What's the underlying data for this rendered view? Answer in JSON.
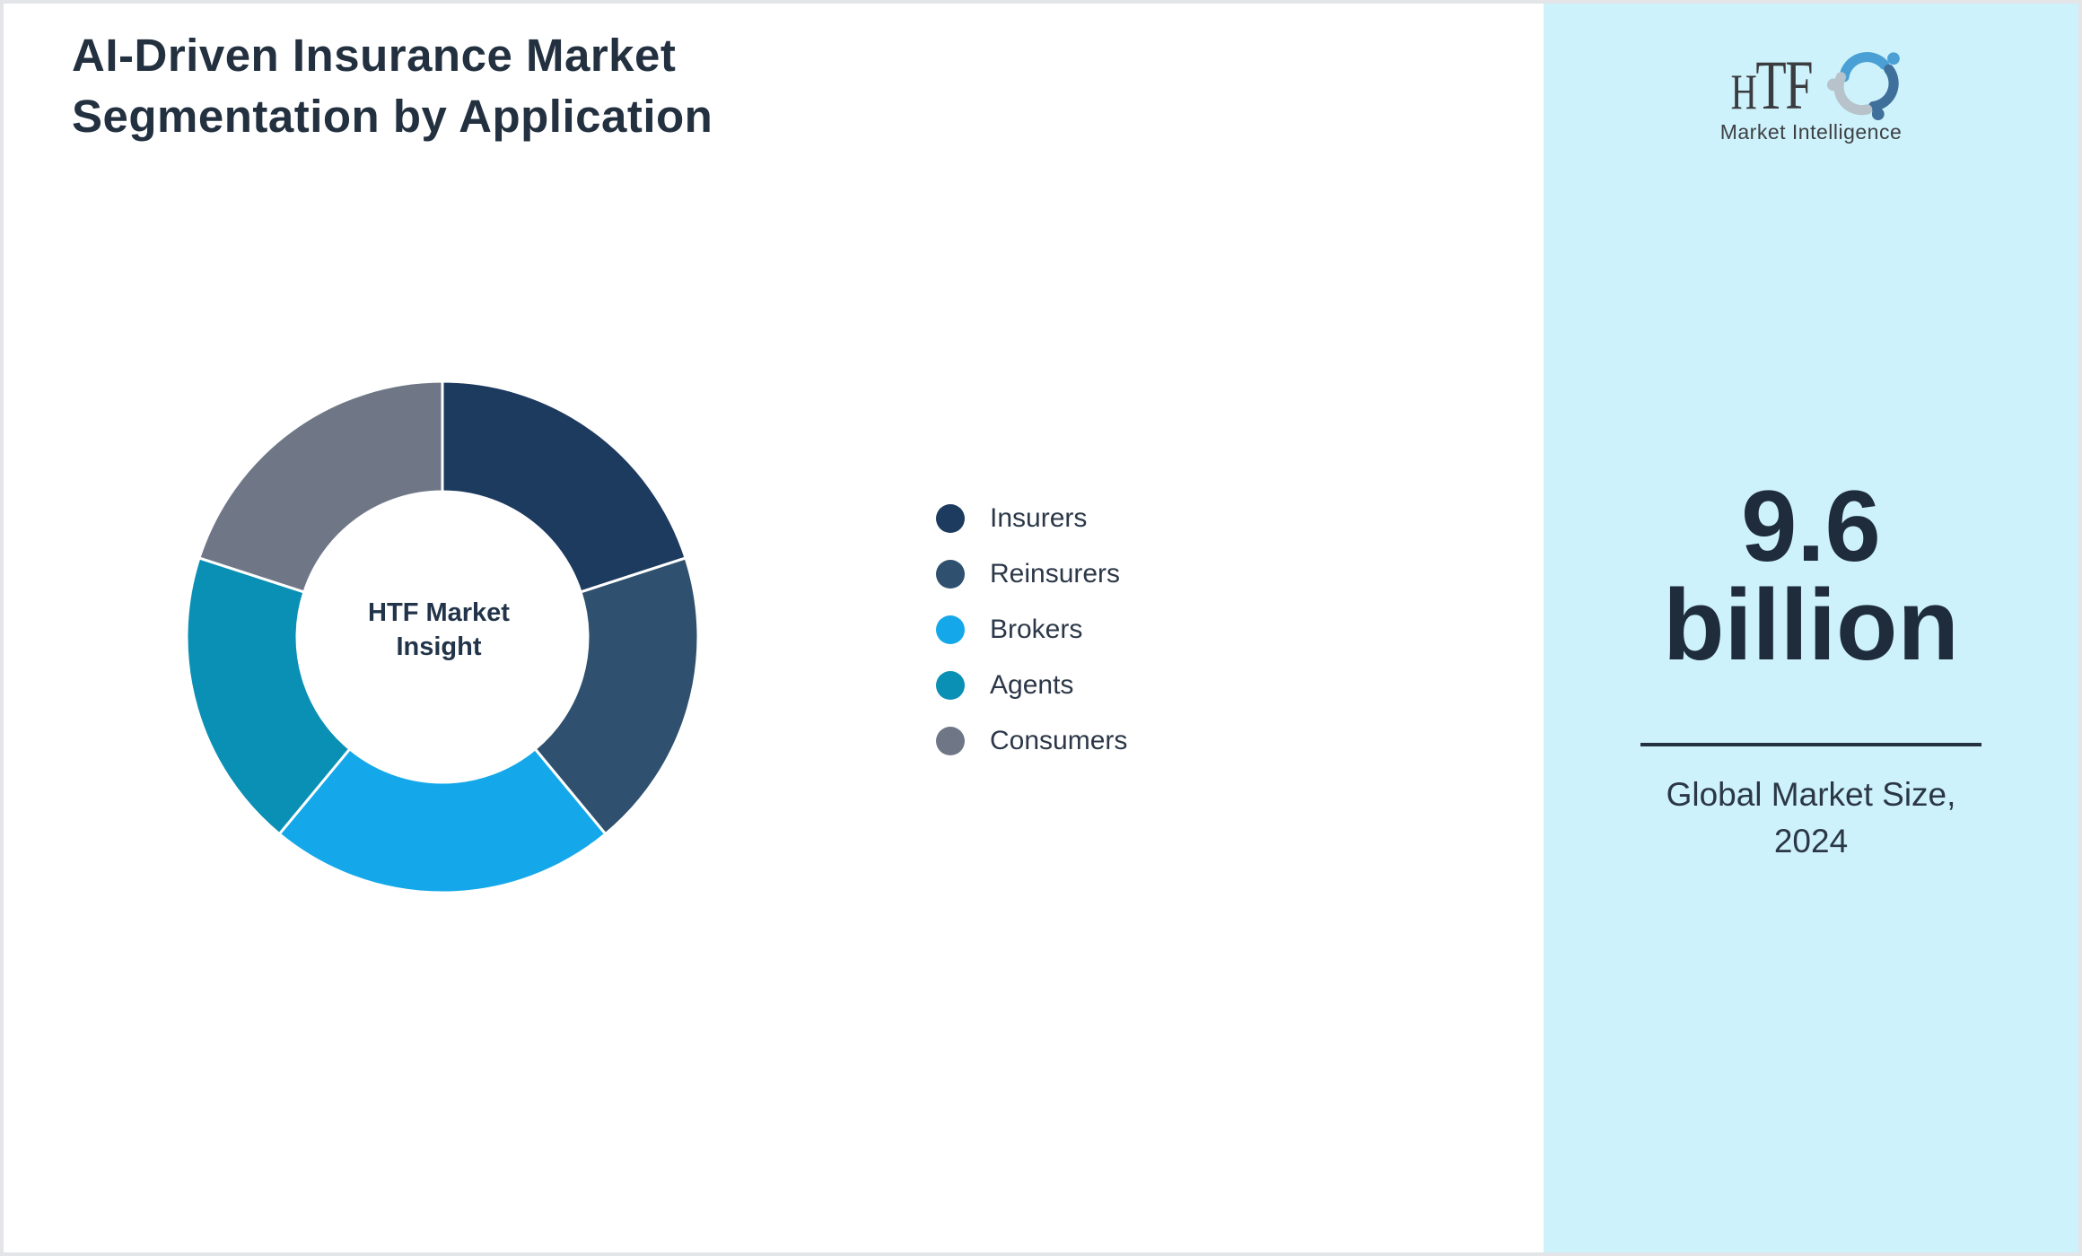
{
  "header": {
    "title_line1": "AI-Driven Insurance Market",
    "title_line2": "Segmentation by Application"
  },
  "chart_data": {
    "type": "pie",
    "donut": true,
    "title": "AI-Driven Insurance Market Segmentation by Application",
    "center_label_line1": "HTF Market",
    "center_label_line2": "Insight",
    "categories": [
      "Insurers",
      "Reinsurers",
      "Brokers",
      "Agents",
      "Consumers"
    ],
    "values": [
      20,
      19,
      22,
      19,
      20
    ],
    "values_unit": "percent_estimated_from_arc_angles",
    "colors": [
      "#1d3a5f",
      "#2f506e",
      "#14a8ea",
      "#0a90b4",
      "#6f7787"
    ],
    "legend_position": "right",
    "start_angle": "top_clockwise",
    "inner_radius_ratio": 0.57
  },
  "legend": {
    "items": [
      {
        "label": "Insurers",
        "color": "#1d3a5f"
      },
      {
        "label": "Reinsurers",
        "color": "#2f506e"
      },
      {
        "label": "Brokers",
        "color": "#14a8ea"
      },
      {
        "label": "Agents",
        "color": "#0a90b4"
      },
      {
        "label": "Consumers",
        "color": "#6f7787"
      }
    ]
  },
  "sidebar": {
    "background": "#cdf2fb",
    "logo_text": "HTF",
    "logo_subtext": "Market Intelligence",
    "logo_colors": [
      "#4aa0d5",
      "#3f6f9b",
      "#b7c2ca"
    ],
    "stat_line1": "9.6",
    "stat_line2": "billion",
    "caption_line1": "Global Market Size,",
    "caption_line2": "2024"
  },
  "theme": {
    "title_color": "#22303f",
    "stat_color": "#1f2c3b",
    "divider_color": "#24313f",
    "page_border": "#e3e5e9",
    "donut_gap_color": "#ffffff"
  }
}
